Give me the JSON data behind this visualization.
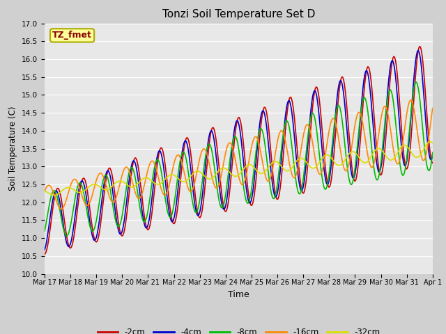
{
  "title": "Tonzi Soil Temperature Set D",
  "xlabel": "Time",
  "ylabel": "Soil Temperature (C)",
  "ylim": [
    10.0,
    17.0
  ],
  "yticks": [
    10.0,
    10.5,
    11.0,
    11.5,
    12.0,
    12.5,
    13.0,
    13.5,
    14.0,
    14.5,
    15.0,
    15.5,
    16.0,
    16.5,
    17.0
  ],
  "x_tick_labels": [
    "Mar 17",
    "Mar 18",
    "Mar 19",
    "Mar 20",
    "Mar 21",
    "Mar 22",
    "Mar 23",
    "Mar 24",
    "Mar 25",
    "Mar 26",
    "Mar 27",
    "Mar 28",
    "Mar 29",
    "Mar 30",
    "Mar 31",
    "Apr 1"
  ],
  "series": {
    "-2cm": {
      "color": "#cc0000",
      "linewidth": 1.2
    },
    "-4cm": {
      "color": "#0000cc",
      "linewidth": 1.2
    },
    "-8cm": {
      "color": "#00bb00",
      "linewidth": 1.2
    },
    "-16cm": {
      "color": "#ff8800",
      "linewidth": 1.2
    },
    "-32cm": {
      "color": "#dddd00",
      "linewidth": 1.2
    }
  },
  "legend_label": "TZ_fmet",
  "legend_bg": "#ffff99",
  "legend_border": "#aaaa00",
  "legend_text_color": "#880000",
  "fig_bg": "#d0d0d0",
  "plot_bg": "#e8e8e8"
}
